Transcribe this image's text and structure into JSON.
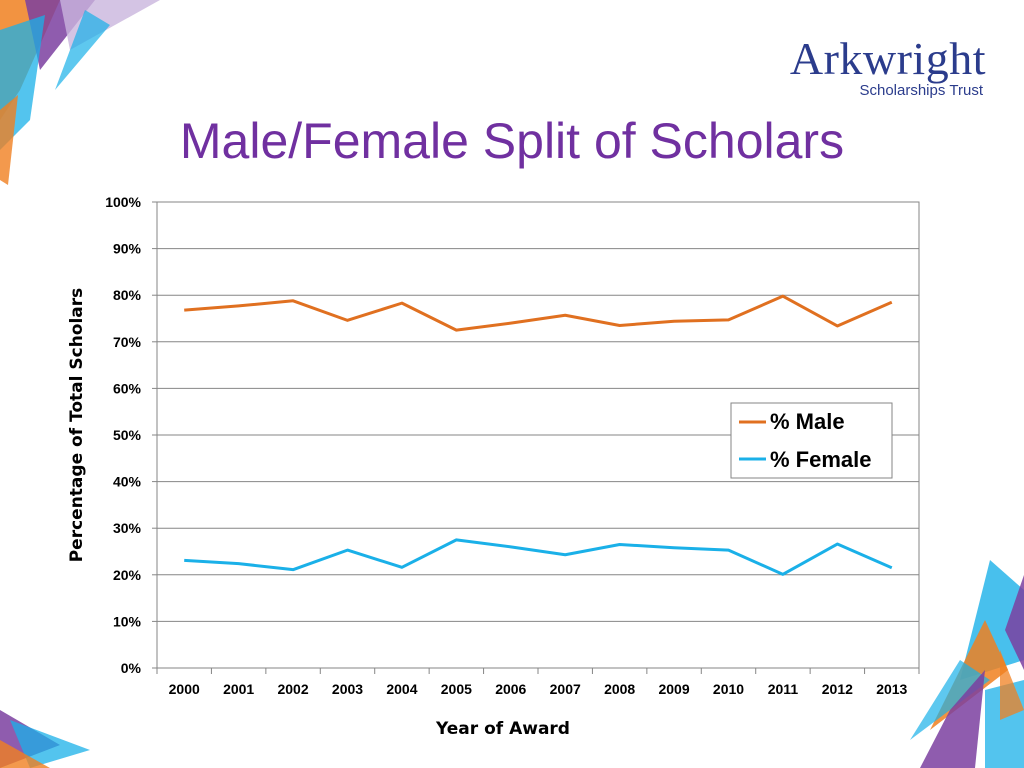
{
  "slide": {
    "title": "Male/Female Split of Scholars",
    "logo": {
      "name": "Arkwright",
      "subtitle_left": "Scholarships",
      "subtitle_right": "Trust"
    }
  },
  "colors": {
    "title": "#7030a0",
    "logo": "#2b3c8c",
    "male": "#e07020",
    "female": "#1ab0e8",
    "deco_purple": "#7b3fa0",
    "deco_cyan": "#1ab0e8",
    "deco_orange": "#f08020"
  },
  "chart_data": {
    "type": "line",
    "title": "",
    "xlabel": "Year of Award",
    "ylabel": "Percentage of Total Scholars",
    "categories": [
      "2000",
      "2001",
      "2002",
      "2003",
      "2004",
      "2005",
      "2006",
      "2007",
      "2008",
      "2009",
      "2010",
      "2011",
      "2012",
      "2013"
    ],
    "ylim": [
      0,
      100
    ],
    "yticks": [
      "0%",
      "10%",
      "20%",
      "30%",
      "40%",
      "50%",
      "60%",
      "70%",
      "80%",
      "90%",
      "100%"
    ],
    "grid": true,
    "legend_position": "right",
    "series": [
      {
        "name": "% Male",
        "color": "#e07020",
        "values": [
          76.8,
          77.7,
          78.8,
          74.6,
          78.3,
          72.5,
          74.0,
          75.7,
          73.5,
          74.4,
          74.7,
          79.8,
          73.4,
          78.5
        ]
      },
      {
        "name": "% Female",
        "color": "#1ab0e8",
        "values": [
          23.1,
          22.4,
          21.1,
          25.3,
          21.6,
          27.5,
          26.0,
          24.3,
          26.5,
          25.8,
          25.3,
          20.1,
          26.6,
          21.5
        ]
      }
    ]
  }
}
